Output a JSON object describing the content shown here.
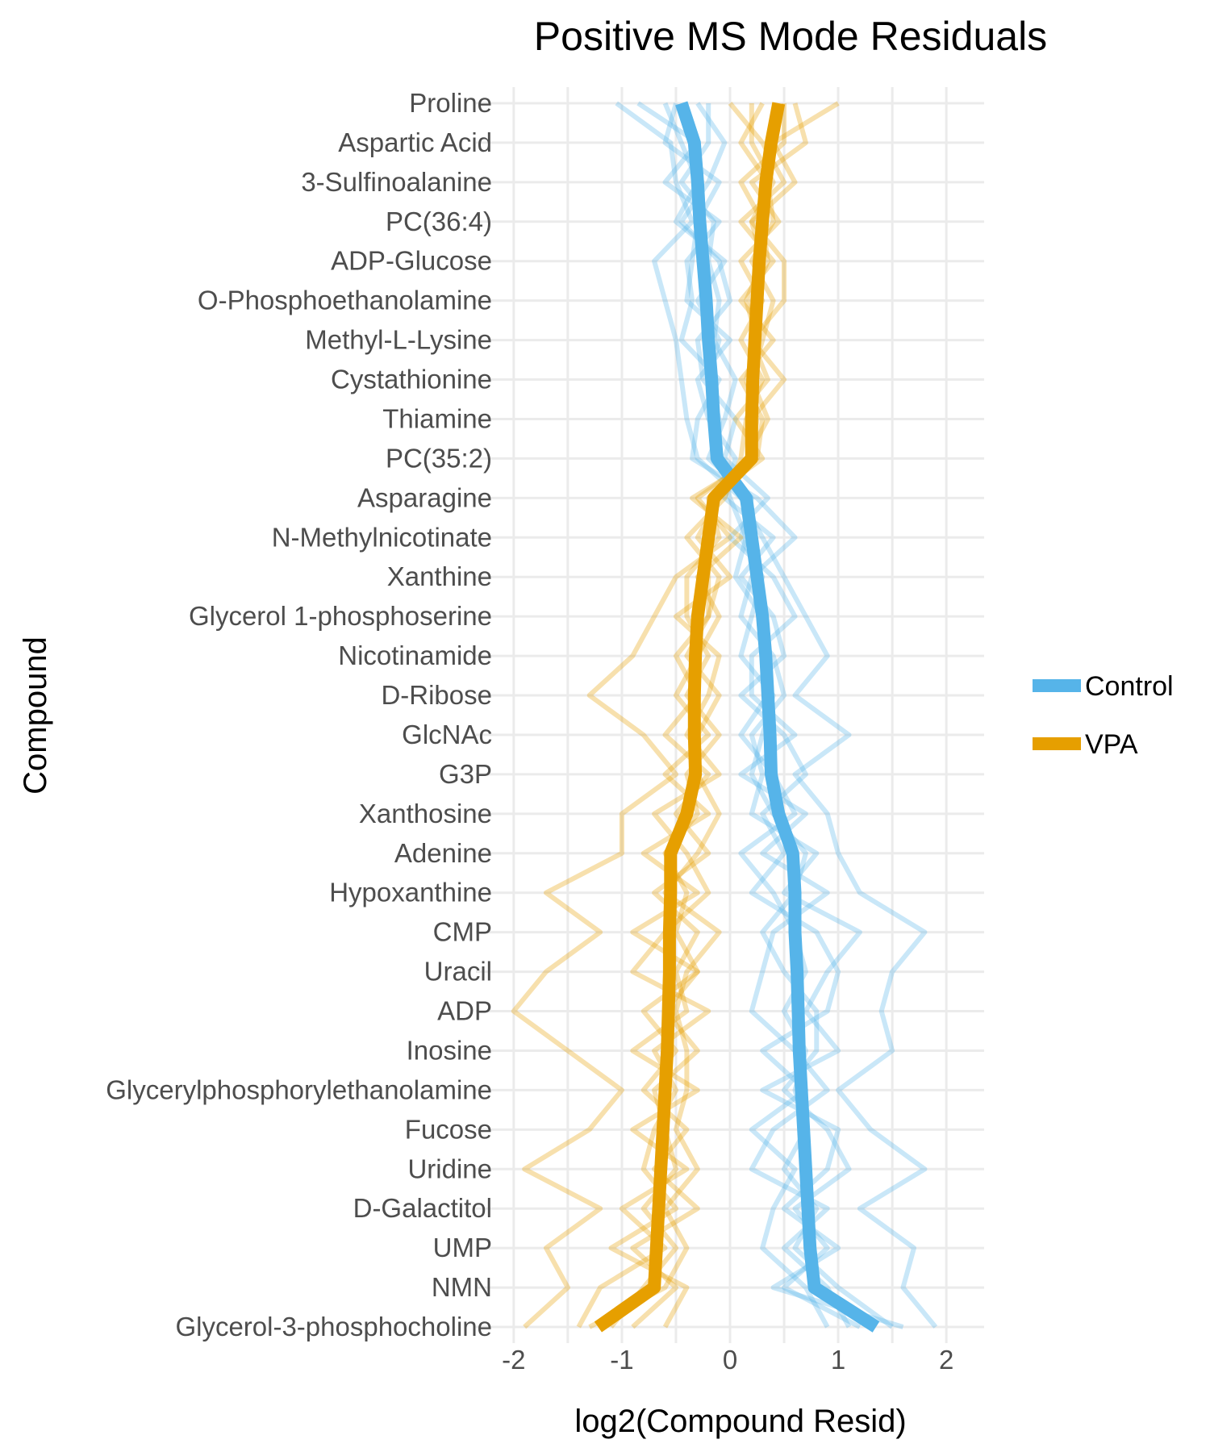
{
  "chart_data": {
    "type": "line",
    "title": "Positive MS Mode Residuals",
    "xlabel": "log2(Compound Resid)",
    "ylabel": "Compound",
    "xlim": [
      -2.2,
      2.2
    ],
    "xticks": [
      -2,
      -1,
      0,
      1,
      2
    ],
    "xtick_labels": [
      "-2",
      "-1",
      "0",
      "1",
      "2"
    ],
    "grid": true,
    "legend_position": "right",
    "compounds": [
      "Proline",
      "Aspartic Acid",
      "3-Sulfinoalanine",
      "PC(36:4)",
      "ADP-Glucose",
      "O-Phosphoethanolamine",
      "Methyl-L-Lysine",
      "Cystathionine",
      "Thiamine",
      "PC(35:2)",
      "Asparagine",
      "N-Methylnicotinate",
      "Xanthine",
      "Glycerol 1-phosphoserine",
      "Nicotinamide",
      "D-Ribose",
      "GlcNAc",
      "G3P",
      "Xanthosine",
      "Adenine",
      "Hypoxanthine",
      "CMP",
      "Uracil",
      "ADP",
      "Inosine",
      "Glycerylphosphorylethanolamine",
      "Fucose",
      "Uridine",
      "D-Galactitol",
      "UMP",
      "NMN",
      "Glycerol-3-phosphocholine"
    ],
    "series": [
      {
        "name": "Control",
        "color": "#56B4E9",
        "mean": [
          -0.45,
          -0.33,
          -0.3,
          -0.28,
          -0.25,
          -0.22,
          -0.2,
          -0.17,
          -0.15,
          -0.12,
          0.15,
          0.2,
          0.25,
          0.3,
          0.33,
          0.35,
          0.37,
          0.38,
          0.45,
          0.58,
          0.6,
          0.6,
          0.62,
          0.63,
          0.64,
          0.66,
          0.68,
          0.7,
          0.72,
          0.74,
          0.78,
          1.35
        ],
        "replicates": [
          [
            -1.05,
            -0.55,
            -0.5,
            -0.35,
            -0.7,
            -0.6,
            -0.5,
            -0.45,
            -0.4,
            -0.3,
            0.1,
            0.3,
            0.5,
            0.7,
            0.9,
            0.6,
            1.1,
            0.6,
            0.9,
            1.0,
            1.2,
            1.8,
            1.5,
            1.4,
            1.5,
            1.0,
            1.3,
            1.8,
            1.2,
            1.7,
            1.6,
            1.9
          ],
          [
            -0.85,
            -0.3,
            -0.6,
            -0.1,
            -0.4,
            -0.35,
            -0.45,
            -0.1,
            -0.3,
            -0.35,
            0.25,
            0.6,
            0.2,
            0.1,
            0.4,
            0.5,
            0.2,
            0.3,
            0.2,
            0.8,
            0.5,
            1.2,
            0.9,
            0.7,
            1.0,
            0.3,
            1.0,
            0.9,
            0.5,
            1.0,
            0.4,
            1.6
          ],
          [
            -0.3,
            -0.05,
            -0.2,
            -0.45,
            -0.1,
            0.0,
            -0.3,
            -0.25,
            0.05,
            -0.05,
            0.35,
            0.0,
            0.4,
            0.6,
            0.2,
            0.2,
            0.6,
            0.1,
            0.7,
            0.3,
            0.9,
            0.4,
            0.3,
            0.2,
            0.6,
            0.9,
            0.4,
            0.2,
            0.9,
            0.5,
            0.9,
            1.1
          ],
          [
            -0.5,
            -0.6,
            -0.1,
            -0.3,
            -0.35,
            -0.4,
            0.0,
            -0.3,
            -0.2,
            0.05,
            -0.05,
            0.4,
            0.1,
            0.4,
            0.5,
            0.1,
            0.5,
            0.7,
            0.3,
            0.5,
            0.2,
            0.8,
            1.0,
            0.9,
            0.3,
            0.7,
            0.2,
            0.6,
            0.4,
            0.3,
            0.7,
            0.9
          ],
          [
            -0.2,
            -0.2,
            -0.45,
            -0.15,
            -0.2,
            -0.1,
            -0.15,
            0.05,
            -0.05,
            -0.2,
            0.2,
            0.1,
            0.3,
            0.2,
            0.1,
            0.4,
            0.3,
            0.2,
            0.4,
            0.7,
            0.6,
            0.3,
            0.5,
            0.8,
            0.8,
            0.5,
            0.9,
            1.1,
            0.6,
            0.9,
            0.5,
            1.2
          ],
          [
            -0.6,
            -0.45,
            -0.3,
            -0.5,
            -0.05,
            -0.3,
            -0.1,
            -0.2,
            -0.1,
            -0.1,
            0.0,
            0.15,
            0.05,
            0.3,
            0.3,
            0.35,
            0.1,
            0.4,
            0.6,
            0.1,
            0.4,
            0.6,
            0.7,
            0.5,
            0.7,
            0.6,
            0.7,
            0.5,
            0.8,
            0.6,
            1.0,
            1.5
          ]
        ]
      },
      {
        "name": "VPA",
        "color": "#E69F00",
        "mean": [
          0.45,
          0.38,
          0.33,
          0.3,
          0.27,
          0.25,
          0.23,
          0.21,
          0.2,
          0.2,
          -0.15,
          -0.2,
          -0.25,
          -0.3,
          -0.32,
          -0.33,
          -0.33,
          -0.32,
          -0.4,
          -0.55,
          -0.55,
          -0.56,
          -0.56,
          -0.57,
          -0.58,
          -0.6,
          -0.62,
          -0.64,
          -0.66,
          -0.68,
          -0.7,
          -1.22
        ],
        "replicates": [
          [
            1.0,
            0.4,
            0.6,
            0.2,
            0.5,
            0.5,
            0.2,
            0.5,
            0.2,
            0.2,
            -0.3,
            0.0,
            -0.5,
            -0.7,
            -0.9,
            -1.3,
            -0.8,
            -0.5,
            -1.0,
            -1.0,
            -1.7,
            -1.2,
            -1.7,
            -2.0,
            -1.5,
            -1.0,
            -1.3,
            -1.9,
            -1.2,
            -1.7,
            -1.5,
            -1.9
          ],
          [
            0.6,
            0.7,
            0.2,
            0.45,
            0.1,
            0.3,
            0.1,
            0.3,
            0.15,
            0.1,
            -0.05,
            -0.4,
            -0.1,
            -0.2,
            -0.5,
            -0.3,
            -0.6,
            -0.2,
            -0.5,
            -0.2,
            -0.7,
            -0.3,
            -0.5,
            -0.4,
            -0.9,
            -0.3,
            -0.9,
            -0.4,
            -1.0,
            -0.6,
            -1.2,
            -1.4
          ],
          [
            0.0,
            0.3,
            0.5,
            0.1,
            0.4,
            0.1,
            0.4,
            0.1,
            0.3,
            0.25,
            -0.35,
            0.1,
            -0.3,
            -0.1,
            -0.3,
            -0.5,
            -0.2,
            -0.6,
            -0.2,
            -0.8,
            -0.3,
            -0.9,
            -0.3,
            -0.8,
            -0.5,
            -0.8,
            -0.4,
            -0.7,
            -0.3,
            -0.9,
            -0.5,
            -0.9
          ],
          [
            0.3,
            0.1,
            0.35,
            0.4,
            0.2,
            0.4,
            0.3,
            0.2,
            0.35,
            0.15,
            -0.1,
            -0.3,
            0.0,
            -0.5,
            -0.1,
            -0.2,
            -0.4,
            -0.1,
            -0.7,
            -0.4,
            -0.2,
            -0.6,
            -0.9,
            -0.2,
            -0.7,
            -0.5,
            -0.7,
            -0.8,
            -0.5,
            -1.1,
            -0.4,
            -0.6
          ],
          [
            0.5,
            0.5,
            0.1,
            0.3,
            0.35,
            0.2,
            0.2,
            0.35,
            0.05,
            0.3,
            -0.2,
            -0.1,
            -0.4,
            -0.4,
            -0.2,
            -0.4,
            -0.1,
            -0.4,
            -0.3,
            -0.6,
            -0.4,
            -0.5,
            -0.3,
            -0.6,
            -0.3,
            -0.7,
            -0.6,
            -0.5,
            -0.8,
            -0.5,
            -0.8,
            -1.1
          ],
          [
            0.2,
            0.2,
            0.4,
            0.2,
            0.3,
            0.15,
            0.25,
            0.15,
            0.25,
            0.2,
            -0.15,
            -0.2,
            -0.2,
            -0.2,
            -0.4,
            -0.1,
            -0.3,
            -0.3,
            -0.1,
            -0.3,
            -0.6,
            -0.1,
            -0.4,
            -0.5,
            -0.4,
            -0.4,
            -0.5,
            -0.3,
            -0.6,
            -0.4,
            -0.6,
            -1.3
          ]
        ]
      }
    ]
  }
}
